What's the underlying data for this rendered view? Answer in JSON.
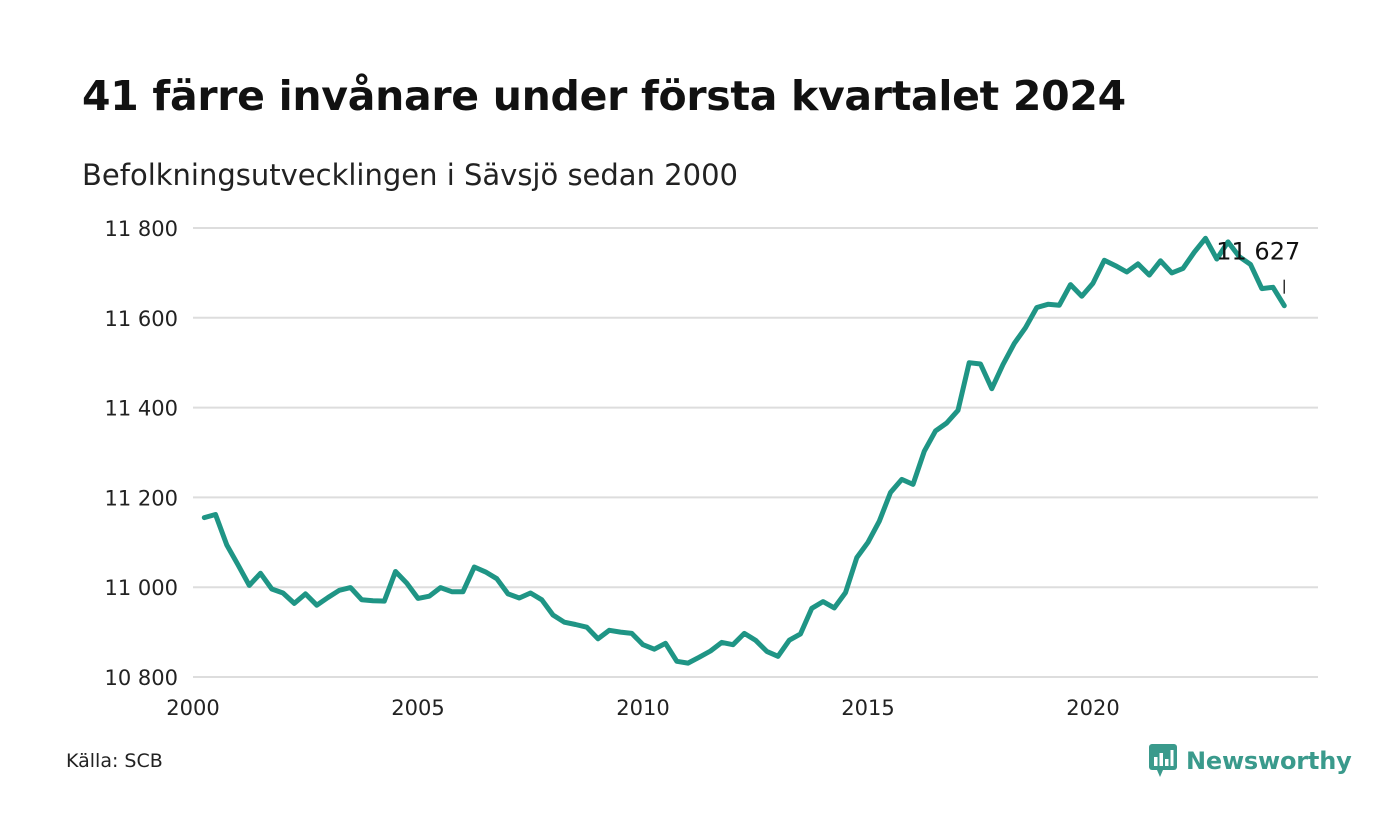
{
  "header": {
    "title": "41 färre invånare under första kvartalet 2024",
    "subtitle": "Befolkningsutvecklingen i Sävsjö sedan 2000"
  },
  "footer": {
    "source": "Källa: SCB",
    "brand": "Newsworthy"
  },
  "icons": {
    "brand": "newsworthy-logo-icon"
  },
  "colors": {
    "line": "#1f9585",
    "grid": "#dddddd",
    "brand": "#3a9a8c"
  },
  "chart_data": {
    "type": "line",
    "ylim": [
      10800,
      11800
    ],
    "xlim": [
      2000,
      2025
    ],
    "yticks": [
      10800,
      11000,
      11200,
      11400,
      11600,
      11800
    ],
    "ytick_labels": [
      "10 800",
      "11 000",
      "11 200",
      "11 400",
      "11 600",
      "11 800"
    ],
    "xticks": [
      2000,
      2005,
      2010,
      2015,
      2020
    ],
    "xtick_labels": [
      "2000",
      "2005",
      "2010",
      "2015",
      "2020"
    ],
    "grid": true,
    "end_label": "11 627",
    "series": [
      {
        "x": [
          2000.25,
          2000.5,
          2000.75,
          2001.0,
          2001.25,
          2001.5,
          2001.75,
          2002.0,
          2002.25,
          2002.5,
          2002.75,
          2003.0,
          2003.25,
          2003.5,
          2003.75,
          2004.0,
          2004.25,
          2004.5,
          2004.75,
          2005.0,
          2005.25,
          2005.5,
          2005.75,
          2006.0,
          2006.25,
          2006.5,
          2006.75,
          2007.0,
          2007.25,
          2007.5,
          2007.75,
          2008.0,
          2008.25,
          2008.5,
          2008.75,
          2009.0,
          2009.25,
          2009.5,
          2009.75,
          2010.0,
          2010.25,
          2010.5,
          2010.75,
          2011.0,
          2011.25,
          2011.5,
          2011.75,
          2012.0,
          2012.25,
          2012.5,
          2012.75,
          2013.0,
          2013.25,
          2013.5,
          2013.75,
          2014.0,
          2014.25,
          2014.5,
          2014.75,
          2015.0,
          2015.25,
          2015.5,
          2015.75,
          2016.0,
          2016.25,
          2016.5,
          2016.75,
          2017.0,
          2017.25,
          2017.5,
          2017.75,
          2018.0,
          2018.25,
          2018.5,
          2018.75,
          2019.0,
          2019.25,
          2019.5,
          2019.75,
          2020.0,
          2020.25,
          2020.5,
          2020.75,
          2021.0,
          2021.25,
          2021.5,
          2021.75,
          2022.0,
          2022.25,
          2022.5,
          2022.75,
          2023.0,
          2023.25,
          2023.5,
          2023.75,
          2024.0,
          2024.25
        ],
        "values": [
          11155,
          11162,
          11094,
          11050,
          11004,
          11031,
          10996,
          10987,
          10964,
          10985,
          10960,
          10977,
          10993,
          10999,
          10972,
          10970,
          10969,
          11035,
          11009,
          10975,
          10980,
          10999,
          10990,
          10990,
          11045,
          11034,
          11019,
          10985,
          10976,
          10987,
          10972,
          10938,
          10922,
          10917,
          10911,
          10885,
          10904,
          10900,
          10897,
          10872,
          10862,
          10875,
          10835,
          10831,
          10844,
          10858,
          10877,
          10872,
          10897,
          10882,
          10857,
          10846,
          10882,
          10896,
          10953,
          10968,
          10954,
          10988,
          11066,
          11100,
          11147,
          11211,
          11240,
          11229,
          11303,
          11348,
          11366,
          11394,
          11500,
          11497,
          11442,
          11496,
          11543,
          11578,
          11623,
          11630,
          11628,
          11674,
          11648,
          11677,
          11728,
          11716,
          11702,
          11720,
          11695,
          11727,
          11700,
          11710,
          11746,
          11777,
          11731,
          11769,
          11736,
          11719,
          11665,
          11668,
          11627
        ]
      }
    ]
  }
}
